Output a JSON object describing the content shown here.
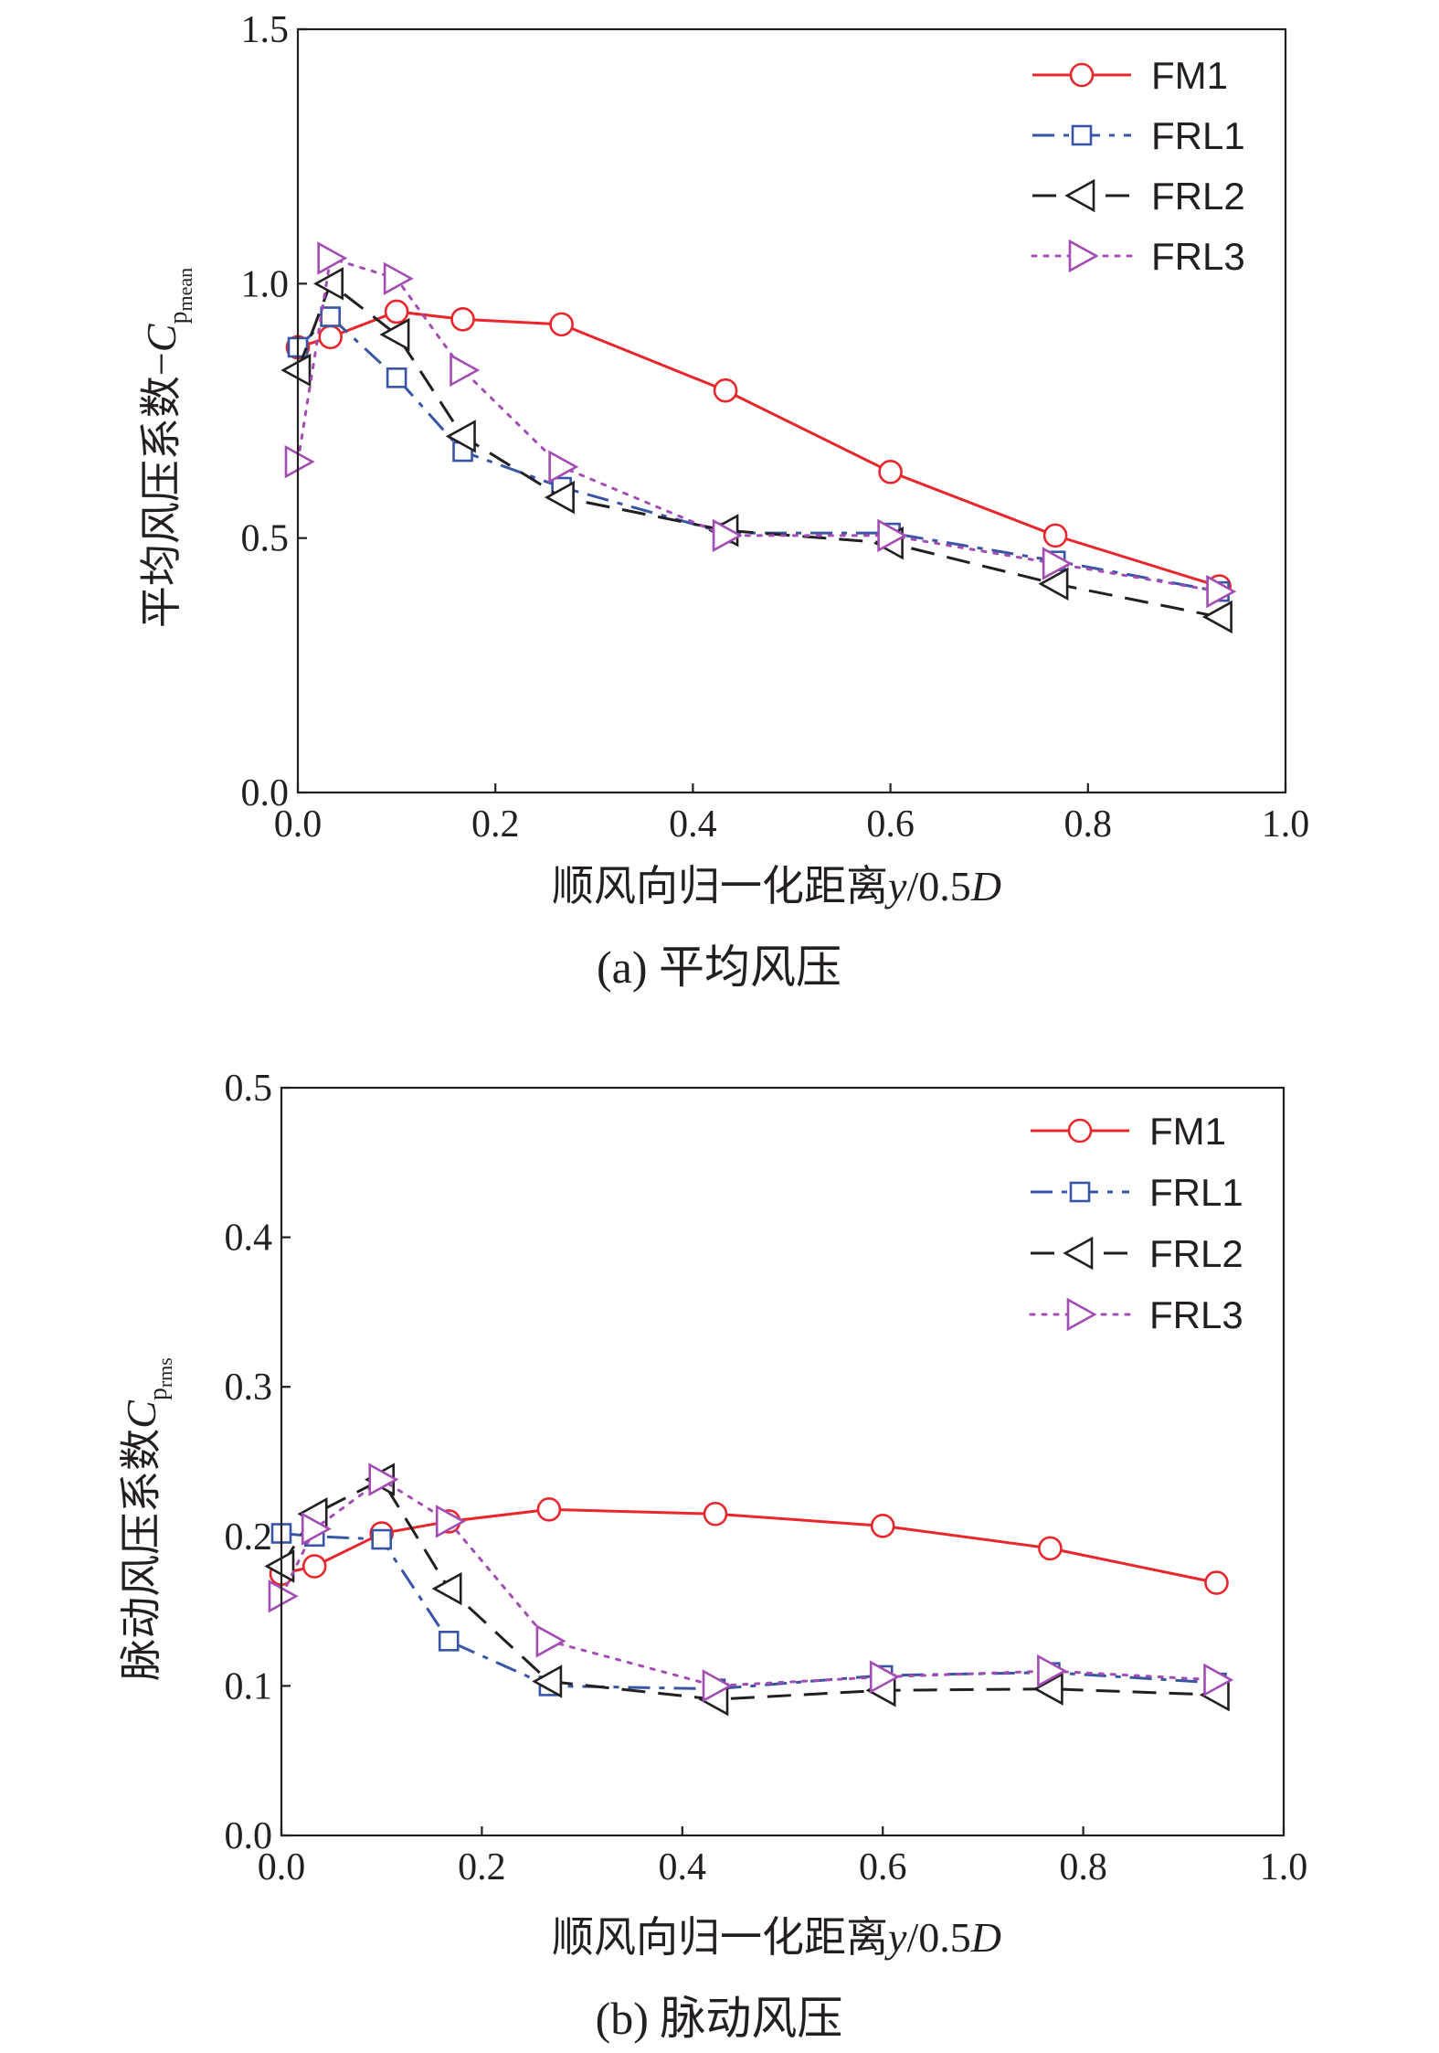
{
  "chart_data": [
    {
      "type": "line",
      "caption": "(a) 平均风压",
      "xlabel_text": "顺风向归一化距离",
      "xlabel_var": "y",
      "xlabel_rest": "/0.5",
      "xlabel_D": "D",
      "ylabel_text": "平均风压系数−",
      "ylabel_C": "C",
      "ylabel_sub1": "p",
      "ylabel_sub2": "mean",
      "xlim": [
        0.0,
        1.0
      ],
      "ylim": [
        0.0,
        1.5
      ],
      "xticks": [
        "0.0",
        "0.2",
        "0.4",
        "0.6",
        "0.8",
        "1.0"
      ],
      "yticks": [
        "0.0",
        "0.5",
        "1.0",
        "1.5"
      ],
      "legend_position": "top-right",
      "series": [
        {
          "name": "FM1",
          "color": "#e8262b",
          "marker": "circle",
          "dash": "solid",
          "x": [
            0.0,
            0.033,
            0.1,
            0.167,
            0.267,
            0.433,
            0.6,
            0.767,
            0.933
          ],
          "y": [
            0.875,
            0.895,
            0.945,
            0.93,
            0.92,
            0.79,
            0.63,
            0.505,
            0.405
          ]
        },
        {
          "name": "FRL1",
          "color": "#3755a4",
          "marker": "square",
          "dash": "dashdot",
          "x": [
            0.0,
            0.033,
            0.1,
            0.167,
            0.267,
            0.433,
            0.6,
            0.767,
            0.933
          ],
          "y": [
            0.875,
            0.935,
            0.815,
            0.67,
            0.6,
            0.51,
            0.51,
            0.455,
            0.395
          ]
        },
        {
          "name": "FRL2",
          "color": "#231f20",
          "marker": "tri-left",
          "dash": "dashed",
          "x": [
            0.0,
            0.033,
            0.1,
            0.167,
            0.267,
            0.433,
            0.6,
            0.767,
            0.933
          ],
          "y": [
            0.83,
            1.0,
            0.9,
            0.7,
            0.58,
            0.515,
            0.49,
            0.41,
            0.345
          ]
        },
        {
          "name": "FRL3",
          "color": "#a24cb4",
          "marker": "tri-right",
          "dash": "dotted",
          "x": [
            0.0,
            0.033,
            0.1,
            0.167,
            0.267,
            0.433,
            0.6,
            0.767,
            0.933
          ],
          "y": [
            0.65,
            1.05,
            1.01,
            0.83,
            0.64,
            0.505,
            0.505,
            0.45,
            0.395
          ]
        }
      ]
    },
    {
      "type": "line",
      "caption": "(b) 脉动风压",
      "xlabel_text": "顺风向归一化距离",
      "xlabel_var": "y",
      "xlabel_rest": "/0.5",
      "xlabel_D": "D",
      "ylabel_text": "脉动风压系数",
      "ylabel_C": "C",
      "ylabel_sub1": "p",
      "ylabel_sub2": "rms",
      "xlim": [
        0.0,
        1.0
      ],
      "ylim": [
        0.0,
        0.5
      ],
      "xticks": [
        "0.0",
        "0.2",
        "0.4",
        "0.6",
        "0.8",
        "1.0"
      ],
      "yticks": [
        "0.0",
        "0.1",
        "0.2",
        "0.3",
        "0.4",
        "0.5"
      ],
      "legend_position": "top-right",
      "series": [
        {
          "name": "FM1",
          "color": "#e8262b",
          "marker": "circle",
          "dash": "solid",
          "x": [
            0.0,
            0.033,
            0.1,
            0.167,
            0.267,
            0.433,
            0.6,
            0.767,
            0.933
          ],
          "y": [
            0.175,
            0.18,
            0.202,
            0.21,
            0.218,
            0.215,
            0.207,
            0.192,
            0.169
          ]
        },
        {
          "name": "FRL1",
          "color": "#3755a4",
          "marker": "square",
          "dash": "dashdot",
          "x": [
            0.0,
            0.033,
            0.1,
            0.167,
            0.267,
            0.433,
            0.6,
            0.767,
            0.933
          ],
          "y": [
            0.202,
            0.2,
            0.198,
            0.13,
            0.1,
            0.098,
            0.107,
            0.109,
            0.102
          ]
        },
        {
          "name": "FRL2",
          "color": "#231f20",
          "marker": "tri-left",
          "dash": "dashed",
          "x": [
            0.0,
            0.033,
            0.1,
            0.167,
            0.267,
            0.433,
            0.6,
            0.767,
            0.933
          ],
          "y": [
            0.18,
            0.215,
            0.238,
            0.165,
            0.103,
            0.091,
            0.097,
            0.098,
            0.094
          ]
        },
        {
          "name": "FRL3",
          "color": "#a24cb4",
          "marker": "tri-right",
          "dash": "dotted",
          "x": [
            0.0,
            0.033,
            0.1,
            0.167,
            0.267,
            0.433,
            0.6,
            0.767,
            0.933
          ],
          "y": [
            0.16,
            0.205,
            0.238,
            0.21,
            0.13,
            0.1,
            0.106,
            0.11,
            0.104
          ]
        }
      ]
    }
  ]
}
